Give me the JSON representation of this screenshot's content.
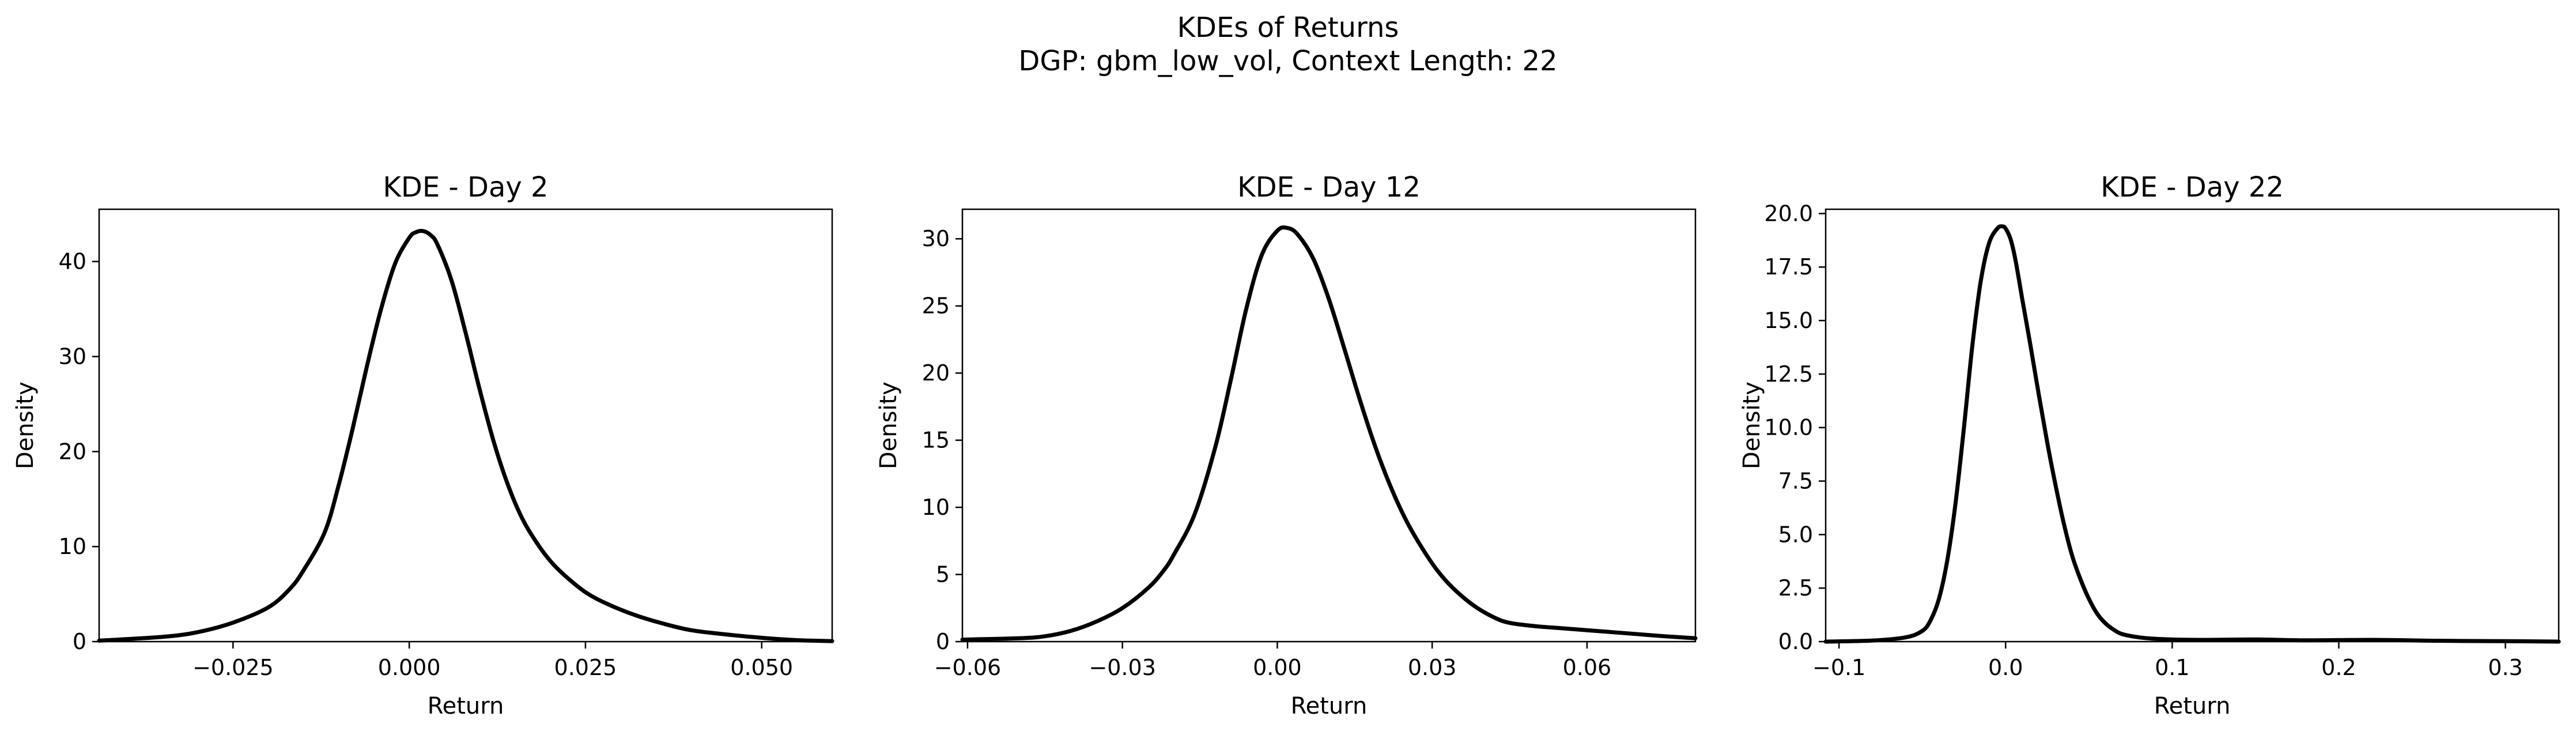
{
  "figure": {
    "title_line1": "KDEs of Returns",
    "title_line2": "DGP: gbm_low_vol, Context Length: 22"
  },
  "chart_data": [
    {
      "type": "line",
      "title": "KDE - Day 2",
      "xlabel": "Return",
      "ylabel": "Density",
      "xlim": [
        -0.044,
        0.06
      ],
      "ylim": [
        0,
        45.5
      ],
      "grid": false,
      "xticks": [
        -0.025,
        0.0,
        0.025,
        0.05
      ],
      "xtick_labels": [
        "−0.025",
        "0.000",
        "0.025",
        "0.050"
      ],
      "yticks": [
        0,
        10,
        20,
        30,
        40
      ],
      "ytick_labels": [
        "0",
        "10",
        "20",
        "30",
        "40"
      ],
      "series": [
        {
          "color": "#000000",
          "x": [
            -0.044,
            -0.035,
            -0.03,
            -0.025,
            -0.02,
            -0.017,
            -0.015,
            -0.012,
            -0.01,
            -0.008,
            -0.006,
            -0.004,
            -0.002,
            0.0,
            0.001,
            0.002,
            0.003,
            0.004,
            0.006,
            0.008,
            0.01,
            0.012,
            0.014,
            0.016,
            0.018,
            0.02,
            0.022,
            0.025,
            0.028,
            0.032,
            0.036,
            0.04,
            0.045,
            0.05,
            0.055,
            0.06
          ],
          "y": [
            0.1,
            0.5,
            1.0,
            2.0,
            3.6,
            5.5,
            7.5,
            11.5,
            16.5,
            22.5,
            29.0,
            35.0,
            39.8,
            42.5,
            43.1,
            43.2,
            42.8,
            41.8,
            38.0,
            32.5,
            26.5,
            21.0,
            16.5,
            13.0,
            10.5,
            8.5,
            7.0,
            5.2,
            4.0,
            2.8,
            1.9,
            1.2,
            0.75,
            0.4,
            0.15,
            0.05
          ]
        }
      ]
    },
    {
      "type": "line",
      "title": "KDE - Day 12",
      "xlabel": "Return",
      "ylabel": "Density",
      "xlim": [
        -0.061,
        0.081
      ],
      "ylim": [
        0,
        32.2
      ],
      "grid": false,
      "xticks": [
        -0.06,
        -0.03,
        0.0,
        0.03,
        0.06
      ],
      "xtick_labels": [
        "−0.06",
        "−0.03",
        "0.00",
        "0.03",
        "0.06"
      ],
      "yticks": [
        0,
        5,
        10,
        15,
        20,
        25,
        30
      ],
      "ytick_labels": [
        "0",
        "5",
        "10",
        "15",
        "20",
        "25",
        "30"
      ],
      "series": [
        {
          "color": "#000000",
          "x": [
            -0.061,
            -0.05,
            -0.045,
            -0.04,
            -0.035,
            -0.03,
            -0.025,
            -0.022,
            -0.02,
            -0.016,
            -0.012,
            -0.009,
            -0.006,
            -0.003,
            0.0,
            0.002,
            0.004,
            0.007,
            0.01,
            0.013,
            0.016,
            0.019,
            0.022,
            0.025,
            0.028,
            0.031,
            0.034,
            0.038,
            0.042,
            0.045,
            0.05,
            0.055,
            0.06,
            0.065,
            0.07,
            0.075,
            0.081
          ],
          "y": [
            0.15,
            0.25,
            0.4,
            0.8,
            1.5,
            2.5,
            4.0,
            5.3,
            6.5,
            9.5,
            14.5,
            19.5,
            24.8,
            28.8,
            30.6,
            30.8,
            30.3,
            28.5,
            25.5,
            21.8,
            18.0,
            14.5,
            11.5,
            9.0,
            7.0,
            5.3,
            4.0,
            2.7,
            1.8,
            1.4,
            1.15,
            1.0,
            0.85,
            0.7,
            0.55,
            0.4,
            0.25
          ]
        }
      ]
    },
    {
      "type": "line",
      "title": "KDE - Day 22",
      "xlabel": "Return",
      "ylabel": "Density",
      "xlim": [
        -0.108,
        0.332
      ],
      "ylim": [
        0,
        20.2
      ],
      "grid": false,
      "xticks": [
        -0.1,
        0.0,
        0.1,
        0.2,
        0.3
      ],
      "xtick_labels": [
        "−0.1",
        "0.0",
        "0.1",
        "0.2",
        "0.3"
      ],
      "yticks": [
        0,
        2.5,
        5.0,
        7.5,
        10.0,
        12.5,
        15.0,
        17.5,
        20.0
      ],
      "ytick_labels": [
        "0.0",
        "2.5",
        "5.0",
        "7.5",
        "10.0",
        "12.5",
        "15.0",
        "17.5",
        "20.0"
      ],
      "series": [
        {
          "color": "#000000",
          "x": [
            -0.108,
            -0.08,
            -0.06,
            -0.05,
            -0.045,
            -0.04,
            -0.035,
            -0.03,
            -0.025,
            -0.02,
            -0.015,
            -0.01,
            -0.005,
            -0.002,
            0.0,
            0.003,
            0.006,
            0.01,
            0.015,
            0.02,
            0.025,
            0.03,
            0.035,
            0.04,
            0.045,
            0.05,
            0.055,
            0.06,
            0.065,
            0.07,
            0.08,
            0.09,
            0.1,
            0.12,
            0.15,
            0.18,
            0.22,
            0.26,
            0.3,
            0.332
          ],
          "y": [
            0.0,
            0.05,
            0.2,
            0.5,
            1.0,
            2.0,
            3.8,
            6.5,
            10.0,
            13.8,
            16.8,
            18.6,
            19.3,
            19.4,
            19.3,
            18.8,
            17.8,
            16.0,
            13.8,
            11.5,
            9.3,
            7.3,
            5.5,
            4.0,
            2.9,
            2.0,
            1.3,
            0.85,
            0.55,
            0.35,
            0.2,
            0.13,
            0.1,
            0.08,
            0.1,
            0.06,
            0.08,
            0.04,
            0.02,
            0.0
          ]
        }
      ]
    }
  ]
}
